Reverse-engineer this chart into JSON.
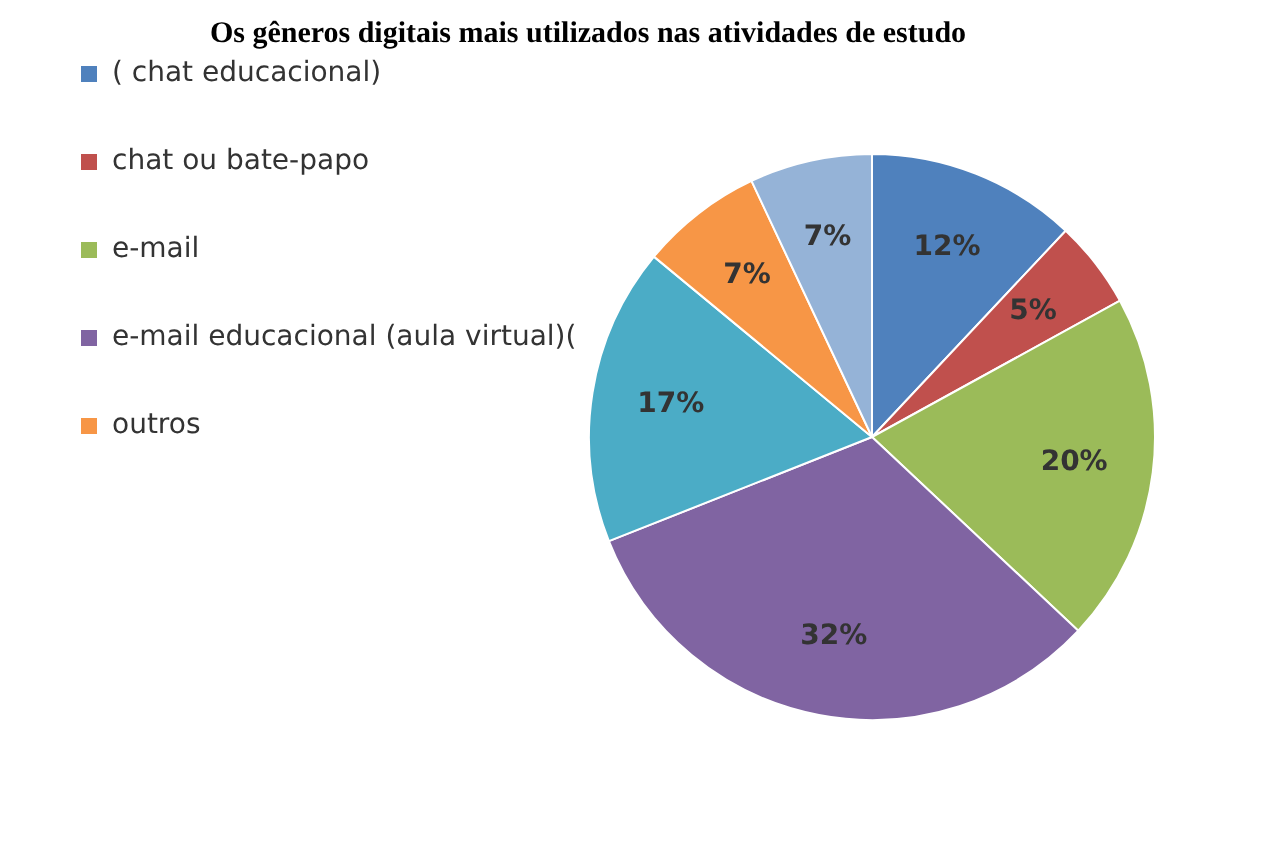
{
  "chart_data": {
    "type": "pie",
    "title": "Os gêneros digitais mais utilizados nas atividades de estudo",
    "categories": [
      "( chat educacional)",
      "chat ou bate-papo",
      "e-mail",
      "e-mail educacional (aula virtual)(",
      null,
      "outros",
      null
    ],
    "values": [
      12,
      5,
      20,
      32,
      17,
      7,
      7
    ],
    "value_labels": [
      "12%",
      "5%",
      "20%",
      "32%",
      "17%",
      "7%",
      "7%"
    ],
    "colors": [
      "#4f81bd",
      "#c0504d",
      "#9bbb59",
      "#8064a2",
      "#4bacc6",
      "#f79646",
      "#95b3d7"
    ],
    "legend": "left"
  }
}
